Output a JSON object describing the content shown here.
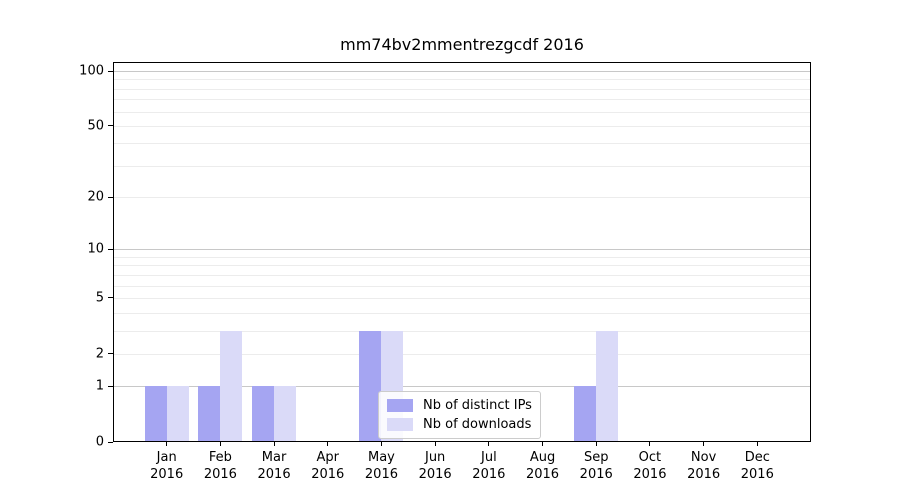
{
  "chart_data": {
    "type": "bar",
    "title": "mm74bv2mmentrezgcdf 2016",
    "categories": [
      "Jan 2016",
      "Feb 2016",
      "Mar 2016",
      "Apr 2016",
      "May 2016",
      "Jun 2016",
      "Jul 2016",
      "Aug 2016",
      "Sep 2016",
      "Oct 2016",
      "Nov 2016",
      "Dec 2016"
    ],
    "series": [
      {
        "name": "Nb of distinct IPs",
        "color": "#a5a5f2",
        "values": [
          1,
          1,
          1,
          0,
          3,
          0,
          0,
          0,
          1,
          0,
          0,
          0
        ]
      },
      {
        "name": "Nb of downloads",
        "color": "#dadaf8",
        "values": [
          1,
          3,
          1,
          0,
          3,
          0,
          0,
          0,
          3,
          0,
          0,
          0
        ]
      }
    ],
    "xlabel": "",
    "ylabel": "",
    "yscale": "log1p",
    "ylim": [
      0,
      112
    ],
    "yticks": [
      0,
      1,
      2,
      5,
      10,
      20,
      50,
      100
    ],
    "grid": {
      "major_values": [
        1,
        10,
        100
      ],
      "minor_values": [
        2,
        3,
        4,
        5,
        6,
        7,
        8,
        9,
        20,
        30,
        40,
        50,
        60,
        70,
        80,
        90
      ],
      "major_color": "#c8c8c8",
      "minor_color": "#ececec"
    },
    "legend": {
      "position": "lower center"
    }
  }
}
